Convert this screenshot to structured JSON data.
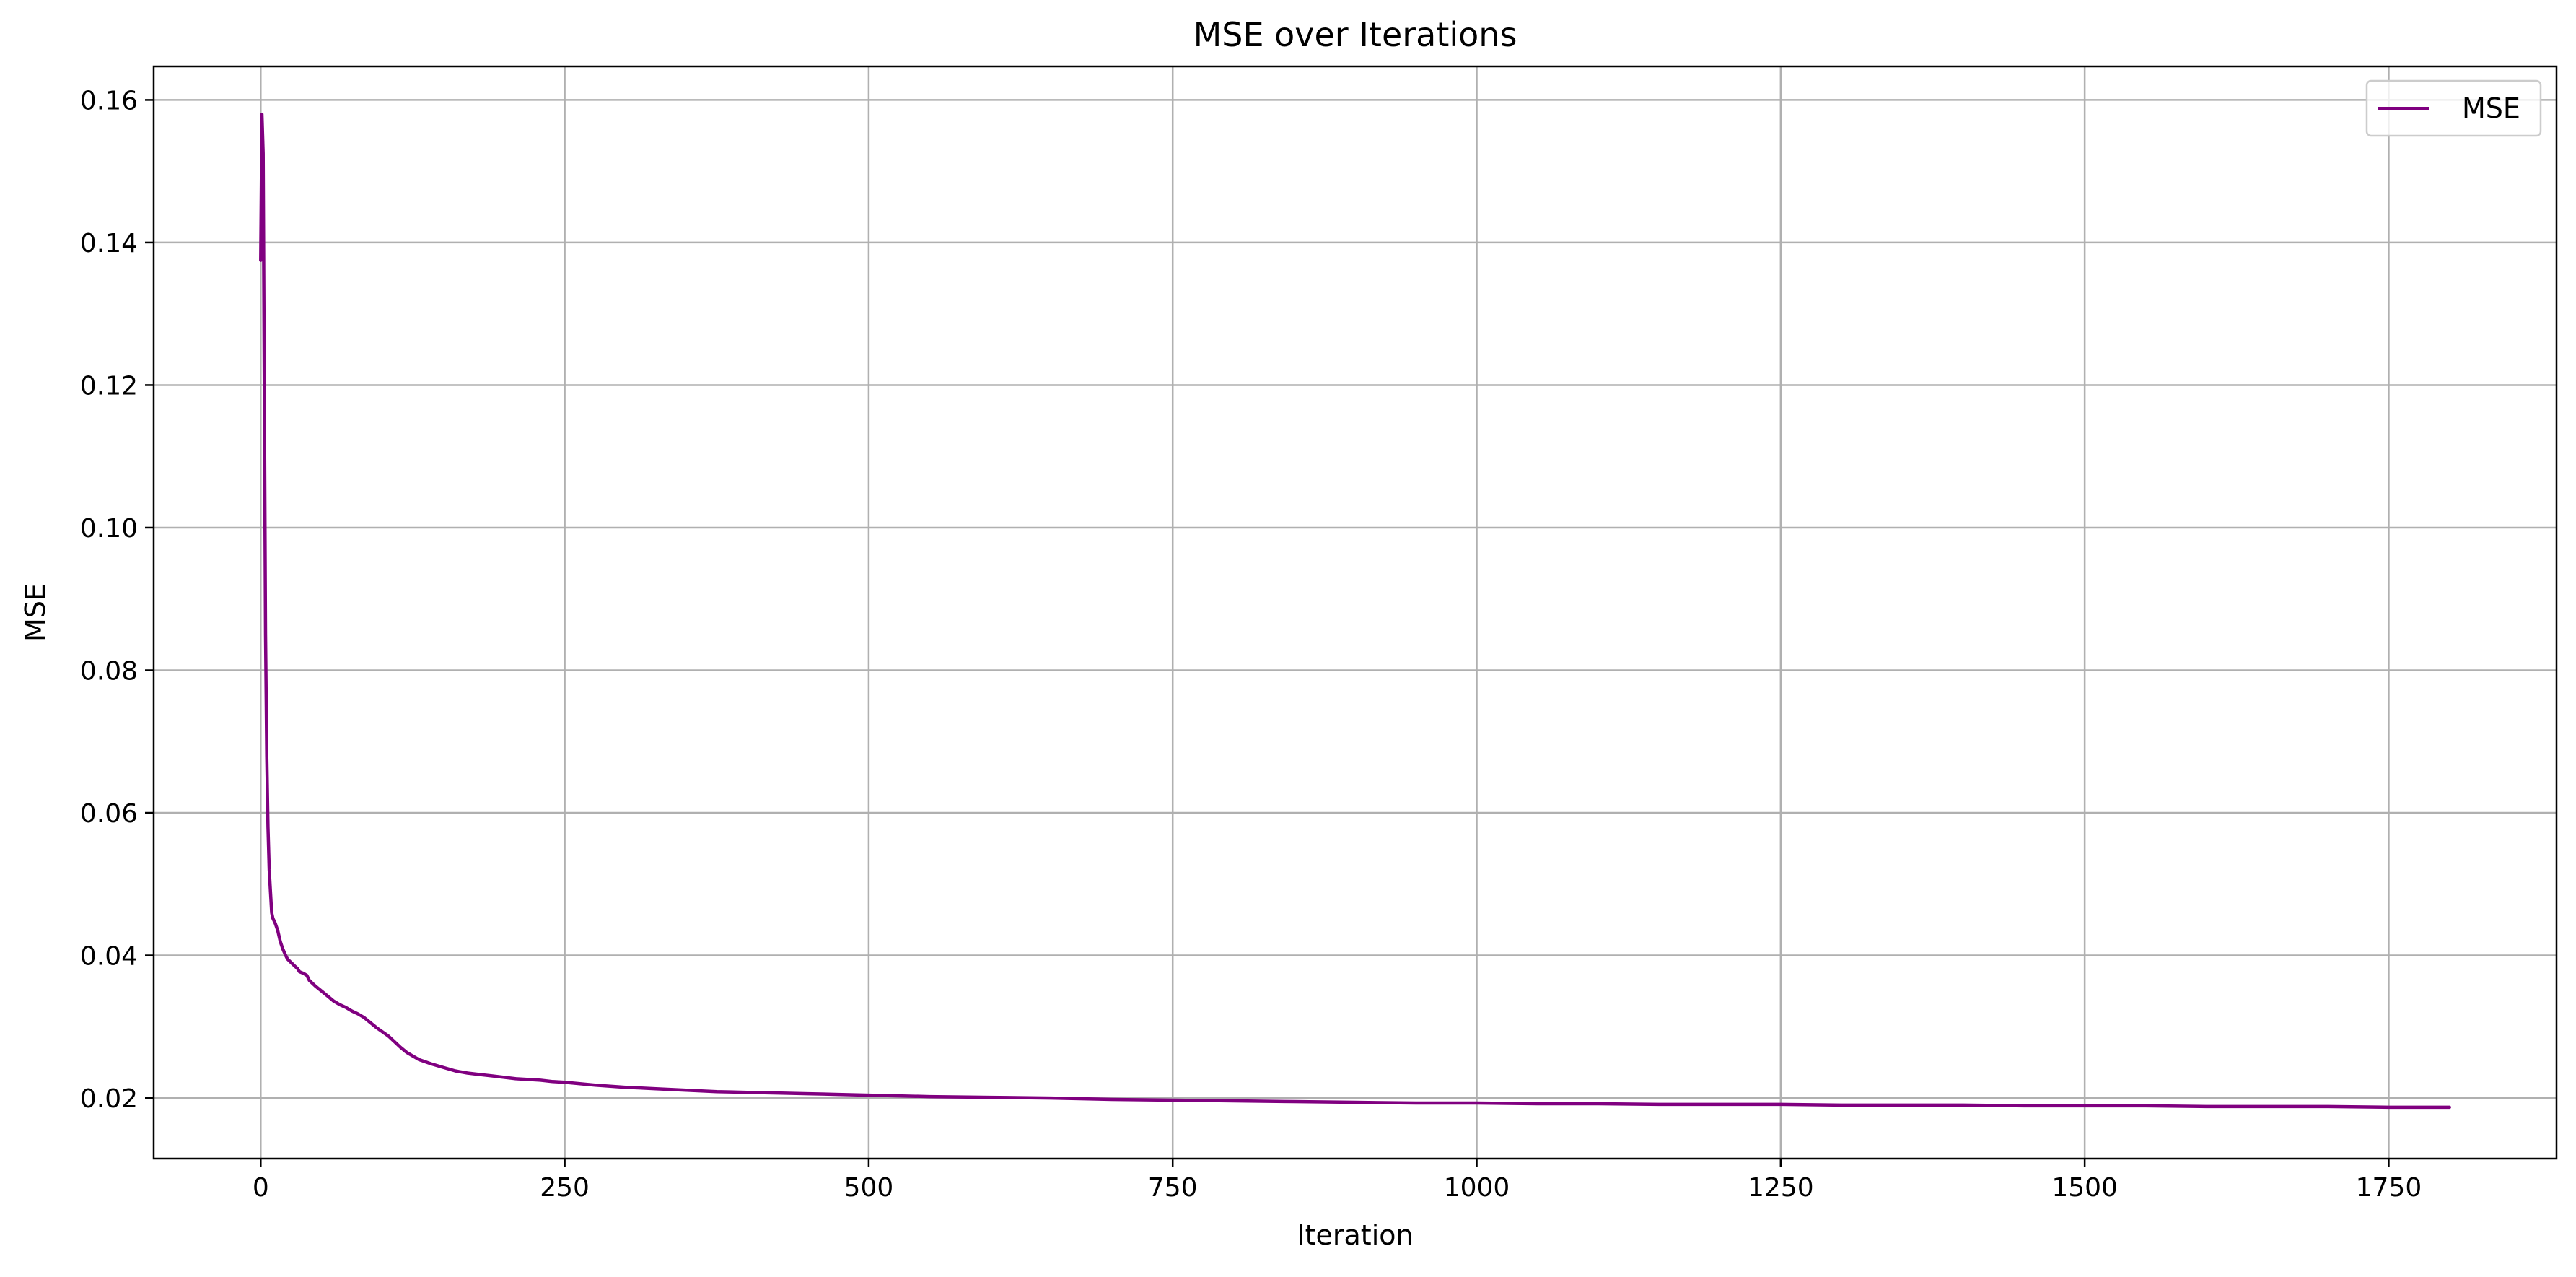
{
  "chart_data": {
    "type": "line",
    "title": "MSE over Iterations",
    "xlabel": "Iteration",
    "ylabel": "MSE",
    "xlim": [
      -88,
      1888
    ],
    "ylim": [
      0.0115,
      0.1647
    ],
    "xticks": [
      0,
      250,
      500,
      750,
      1000,
      1250,
      1500,
      1750
    ],
    "xtick_labels": [
      "0",
      "250",
      "500",
      "750",
      "1000",
      "1250",
      "1500",
      "1750"
    ],
    "yticks": [
      0.02,
      0.04,
      0.06,
      0.08,
      0.1,
      0.12,
      0.14,
      0.16
    ],
    "ytick_labels": [
      "0.02",
      "0.04",
      "0.06",
      "0.08",
      "0.10",
      "0.12",
      "0.14",
      "0.16"
    ],
    "grid": true,
    "legend": {
      "position": "top-right",
      "entries": [
        "MSE"
      ]
    },
    "series": [
      {
        "name": "MSE",
        "color": "#800080",
        "x": [
          0,
          1,
          2,
          3,
          4,
          5,
          6,
          7,
          8,
          9,
          10,
          12,
          14,
          16,
          18,
          20,
          22,
          25,
          28,
          30,
          32,
          35,
          38,
          40,
          45,
          50,
          55,
          60,
          65,
          70,
          75,
          80,
          85,
          90,
          95,
          100,
          105,
          110,
          115,
          120,
          125,
          130,
          140,
          150,
          160,
          170,
          180,
          190,
          200,
          210,
          220,
          230,
          240,
          250,
          275,
          300,
          325,
          350,
          375,
          400,
          425,
          450,
          475,
          500,
          550,
          600,
          650,
          700,
          750,
          800,
          850,
          900,
          950,
          1000,
          1050,
          1100,
          1150,
          1200,
          1250,
          1300,
          1350,
          1400,
          1450,
          1500,
          1550,
          1600,
          1650,
          1700,
          1750,
          1800
        ],
        "y": [
          0.1375,
          0.158,
          0.1525,
          0.117,
          0.085,
          0.068,
          0.058,
          0.052,
          0.049,
          0.046,
          0.0452,
          0.0445,
          0.0435,
          0.042,
          0.041,
          0.0402,
          0.0395,
          0.039,
          0.0385,
          0.0382,
          0.0377,
          0.0375,
          0.0372,
          0.0365,
          0.0357,
          0.035,
          0.0343,
          0.0336,
          0.0331,
          0.0327,
          0.0322,
          0.0318,
          0.0313,
          0.0306,
          0.0299,
          0.0293,
          0.0287,
          0.0279,
          0.0271,
          0.0264,
          0.0259,
          0.0254,
          0.0248,
          0.0243,
          0.0238,
          0.0235,
          0.0233,
          0.0231,
          0.0229,
          0.0227,
          0.0226,
          0.0225,
          0.0223,
          0.0222,
          0.0218,
          0.0215,
          0.0213,
          0.0211,
          0.0209,
          0.0208,
          0.0207,
          0.0206,
          0.0205,
          0.0204,
          0.0202,
          0.0201,
          0.02,
          0.0198,
          0.0197,
          0.0196,
          0.0195,
          0.0194,
          0.0193,
          0.0193,
          0.0192,
          0.0192,
          0.0191,
          0.0191,
          0.0191,
          0.019,
          0.019,
          0.019,
          0.0189,
          0.0189,
          0.0189,
          0.0188,
          0.0188,
          0.0188,
          0.0187,
          0.0187
        ]
      }
    ]
  }
}
